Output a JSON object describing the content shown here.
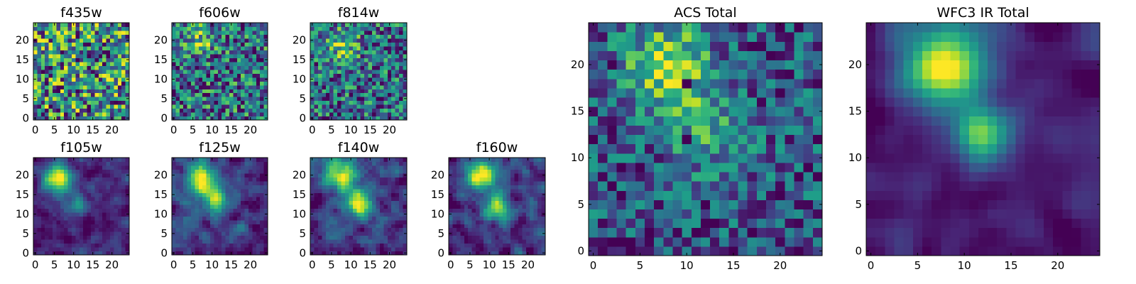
{
  "figure": {
    "background": "#ffffff"
  },
  "chart_data": [
    {
      "type": "heatmap",
      "title": "f435w",
      "xlabel": "",
      "ylabel": "",
      "grid_size": [
        25,
        25
      ],
      "xlim": [
        -0.5,
        24.5
      ],
      "ylim": [
        -0.5,
        24.5
      ],
      "xticks": [
        0,
        5,
        10,
        15,
        20
      ],
      "yticks": [
        0,
        5,
        10,
        15,
        20
      ],
      "colormap": "viridis",
      "seed": 11,
      "noise": 1.0,
      "smooth": 0,
      "blobs": [],
      "spikes": 0,
      "grid": false
    },
    {
      "type": "heatmap",
      "title": "f606w",
      "xlabel": "",
      "ylabel": "",
      "grid_size": [
        25,
        25
      ],
      "xlim": [
        -0.5,
        24.5
      ],
      "ylim": [
        -0.5,
        24.5
      ],
      "xticks": [
        0,
        5,
        10,
        15,
        20
      ],
      "yticks": [
        0,
        5,
        10,
        15,
        20
      ],
      "colormap": "viridis",
      "seed": 23,
      "noise": 1.0,
      "smooth": 0,
      "blobs": [
        {
          "x": 7,
          "y": 20,
          "sigma": 2.5,
          "amp": 0.4
        }
      ],
      "spikes": 0,
      "grid": false
    },
    {
      "type": "heatmap",
      "title": "f814w",
      "xlabel": "",
      "ylabel": "",
      "grid_size": [
        25,
        25
      ],
      "xlim": [
        -0.5,
        24.5
      ],
      "ylim": [
        -0.5,
        24.5
      ],
      "xticks": [
        0,
        5,
        10,
        15,
        20
      ],
      "yticks": [
        0,
        5,
        10,
        15,
        20
      ],
      "colormap": "viridis",
      "seed": 37,
      "noise": 1.0,
      "smooth": 0,
      "blobs": [
        {
          "x": 8,
          "y": 19,
          "sigma": 3,
          "amp": 0.5
        }
      ],
      "spikes": 0,
      "grid": false
    },
    {
      "type": "heatmap",
      "title": "f105w",
      "xlabel": "",
      "ylabel": "",
      "grid_size": [
        25,
        25
      ],
      "xlim": [
        -0.5,
        24.5
      ],
      "ylim": [
        -0.5,
        24.5
      ],
      "xticks": [
        0,
        5,
        10,
        15,
        20
      ],
      "yticks": [
        0,
        5,
        10,
        15,
        20
      ],
      "colormap": "viridis",
      "seed": 41,
      "noise": 0.6,
      "smooth": 1,
      "blobs": [
        {
          "x": 6,
          "y": 19,
          "sigma": 2.5,
          "amp": 1.4
        },
        {
          "x": 11,
          "y": 13,
          "sigma": 2,
          "amp": 0.6
        }
      ],
      "spikes": 0,
      "grid": false
    },
    {
      "type": "heatmap",
      "title": "f125w",
      "xlabel": "",
      "ylabel": "",
      "grid_size": [
        25,
        25
      ],
      "xlim": [
        -0.5,
        24.5
      ],
      "ylim": [
        -0.5,
        24.5
      ],
      "xticks": [
        0,
        5,
        10,
        15,
        20
      ],
      "yticks": [
        0,
        5,
        10,
        15,
        20
      ],
      "colormap": "viridis",
      "seed": 53,
      "noise": 0.7,
      "smooth": 1,
      "blobs": [
        {
          "x": 8,
          "y": 19,
          "sigma": 3,
          "amp": 1.1
        },
        {
          "x": 11,
          "y": 13,
          "sigma": 2,
          "amp": 0.8
        }
      ],
      "spikes": 0,
      "grid": false
    },
    {
      "type": "heatmap",
      "title": "f140w",
      "xlabel": "",
      "ylabel": "",
      "grid_size": [
        25,
        25
      ],
      "xlim": [
        -0.5,
        24.5
      ],
      "ylim": [
        -0.5,
        24.5
      ],
      "xticks": [
        0,
        5,
        10,
        15,
        20
      ],
      "yticks": [
        0,
        5,
        10,
        15,
        20
      ],
      "colormap": "viridis",
      "seed": 67,
      "noise": 0.7,
      "smooth": 1,
      "blobs": [
        {
          "x": 7,
          "y": 20,
          "sigma": 3,
          "amp": 1.1
        },
        {
          "x": 12,
          "y": 13,
          "sigma": 2.5,
          "amp": 1.1
        }
      ],
      "spikes": 0,
      "grid": false
    },
    {
      "type": "heatmap",
      "title": "f160w",
      "xlabel": "",
      "ylabel": "",
      "grid_size": [
        25,
        25
      ],
      "xlim": [
        -0.5,
        24.5
      ],
      "ylim": [
        -0.5,
        24.5
      ],
      "xticks": [
        0,
        5,
        10,
        15,
        20
      ],
      "yticks": [
        0,
        5,
        10,
        15,
        20
      ],
      "colormap": "viridis",
      "seed": 79,
      "noise": 0.7,
      "smooth": 1,
      "blobs": [
        {
          "x": 8,
          "y": 20,
          "sigma": 2.5,
          "amp": 1.2
        },
        {
          "x": 12,
          "y": 12,
          "sigma": 2.5,
          "amp": 0.9
        }
      ],
      "spikes": 0,
      "grid": false
    },
    {
      "type": "heatmap",
      "title": "ACS Total",
      "xlabel": "",
      "ylabel": "",
      "grid_size": [
        25,
        25
      ],
      "xlim": [
        -0.5,
        24.5
      ],
      "ylim": [
        -0.5,
        24.5
      ],
      "xticks": [
        0,
        5,
        10,
        15,
        20
      ],
      "yticks": [
        0,
        5,
        10,
        15,
        20
      ],
      "colormap": "viridis",
      "seed": 97,
      "noise": 0.55,
      "smooth": 0,
      "blobs": [
        {
          "x": 8,
          "y": 20,
          "sigma": 3,
          "amp": 0.6
        },
        {
          "x": 12,
          "y": 13,
          "sigma": 3,
          "amp": 0.3
        }
      ],
      "spikes": 9,
      "grid": false
    },
    {
      "type": "heatmap",
      "title": "WFC3 IR Total",
      "xlabel": "",
      "ylabel": "",
      "grid_size": [
        25,
        25
      ],
      "xlim": [
        -0.5,
        24.5
      ],
      "ylim": [
        -0.5,
        24.5
      ],
      "xticks": [
        0,
        5,
        10,
        15,
        20
      ],
      "yticks": [
        0,
        5,
        10,
        15,
        20
      ],
      "colormap": "viridis",
      "seed": 113,
      "noise": 0.45,
      "smooth": 2,
      "blobs": [
        {
          "x": 8,
          "y": 20,
          "sigma": 3,
          "amp": 1.6
        },
        {
          "x": 12,
          "y": 12.5,
          "sigma": 2,
          "amp": 1.1
        }
      ],
      "spikes": 0,
      "grid": false
    }
  ]
}
